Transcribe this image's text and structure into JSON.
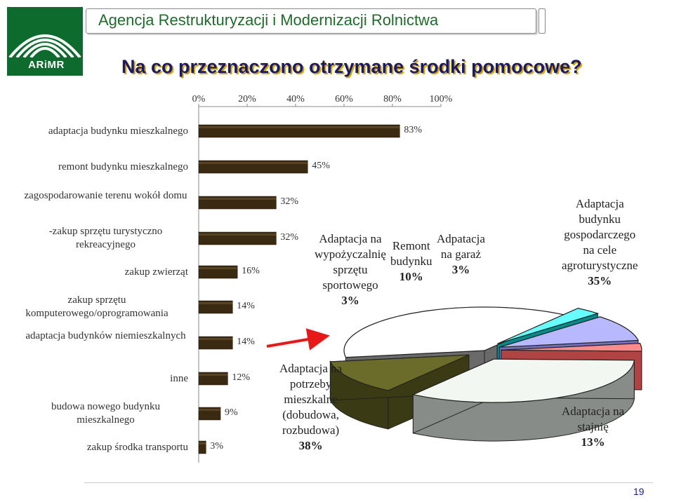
{
  "header": {
    "agency": "Agencja Restrukturyzacji i Modernizacji Rolnictwa",
    "logo_text": "ARiMR",
    "title": "Na co przeznaczono otrzymane środki pomocowe?"
  },
  "page_number": "19",
  "chart_data": [
    {
      "type": "bar",
      "orientation": "horizontal",
      "categories": [
        "adaptacja budynku mieszkalnego",
        "remont budynku mieszkalnego",
        "zagospodarowanie terenu wokół domu",
        "-zakup sprzętu turystyczno rekreacyjnego",
        "zakup zwierząt",
        "zakup sprzętu komputerowego/oprogramowania",
        "adaptacja budynków niemieszkalnych",
        "inne",
        "budowa nowego budynku mieszkalnego",
        "zakup środka transportu"
      ],
      "values": [
        83,
        45,
        32,
        32,
        16,
        14,
        14,
        12,
        9,
        3
      ],
      "value_labels": [
        "83%",
        "45%",
        "32%",
        "32%",
        "16%",
        "14%",
        "14%",
        "12%",
        "9%",
        "3%"
      ],
      "xlim": [
        0,
        100
      ],
      "xticks": [
        "0%",
        "20%",
        "40%",
        "60%",
        "80%",
        "100%"
      ],
      "bar_color": "#3b2a12",
      "axis_position": "top"
    },
    {
      "type": "pie",
      "style": "3d-exploded",
      "slices": [
        {
          "label": "Adaptacja na potrzeby mieszkalne (dobudowa, rozbudowa)",
          "name_lines": [
            "Adaptacja na",
            "potrzeby",
            "mieszkalne",
            "(dobudowa,",
            "rozbudowa)"
          ],
          "value": 38,
          "pct": "38%",
          "color": "#ffffff"
        },
        {
          "label": "Adaptacja na wypożyczalnię sprzętu sportowego",
          "name_lines": [
            "Adaptacja na",
            "wypożyczalnię",
            "sprzętu",
            "sportowego"
          ],
          "value": 3,
          "pct": "3%",
          "color": "#66ffff"
        },
        {
          "label": "Remont budynku",
          "name_lines": [
            "Remont",
            "budynku"
          ],
          "value": 10,
          "pct": "10%",
          "color": "#b8b8ff"
        },
        {
          "label": "Adpatacja na garaż",
          "name_lines": [
            "Adpatacja",
            "na garaż"
          ],
          "value": 3,
          "pct": "3%",
          "color": "#ff8a8a"
        },
        {
          "label": "Adaptacja budynku gospodarczego na cele agroturystyczne",
          "name_lines": [
            "Adaptacja",
            "budynku",
            "gospodarczego",
            "na cele",
            "agroturystyczne"
          ],
          "value": 35,
          "pct": "35%",
          "color": "#f2f7f2"
        },
        {
          "label": "Adaptacja na stajnię",
          "name_lines": [
            "Adaptacja na",
            "stajnię"
          ],
          "value": 13,
          "pct": "13%",
          "color": "#6b6b2a"
        }
      ]
    }
  ]
}
